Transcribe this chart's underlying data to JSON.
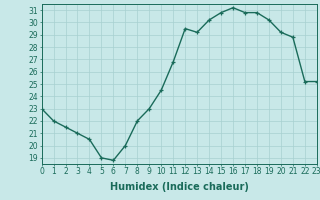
{
  "x": [
    0,
    1,
    2,
    3,
    4,
    5,
    6,
    7,
    8,
    9,
    10,
    11,
    12,
    13,
    14,
    15,
    16,
    17,
    18,
    19,
    20,
    21,
    22,
    23
  ],
  "y": [
    23,
    22,
    21.5,
    21,
    20.5,
    19,
    18.8,
    20,
    22,
    23,
    24.5,
    26.8,
    29.5,
    29.2,
    30.2,
    30.8,
    31.2,
    30.8,
    30.8,
    30.2,
    29.2,
    28.8,
    25.2,
    25.2
  ],
  "xlabel": "Humidex (Indice chaleur)",
  "line_color": "#1a6b5a",
  "marker": "+",
  "bg_color": "#c8e8e8",
  "grid_color": "#a8d0d0",
  "ylim": [
    18.5,
    31.5
  ],
  "xlim": [
    0,
    23
  ],
  "yticks": [
    19,
    20,
    21,
    22,
    23,
    24,
    25,
    26,
    27,
    28,
    29,
    30,
    31
  ],
  "xticks": [
    0,
    1,
    2,
    3,
    4,
    5,
    6,
    7,
    8,
    9,
    10,
    11,
    12,
    13,
    14,
    15,
    16,
    17,
    18,
    19,
    20,
    21,
    22,
    23
  ],
  "tick_label_fontsize": 5.5,
  "xlabel_fontsize": 7,
  "axis_color": "#1a6b5a",
  "linewidth": 1.0,
  "markersize": 3.5
}
